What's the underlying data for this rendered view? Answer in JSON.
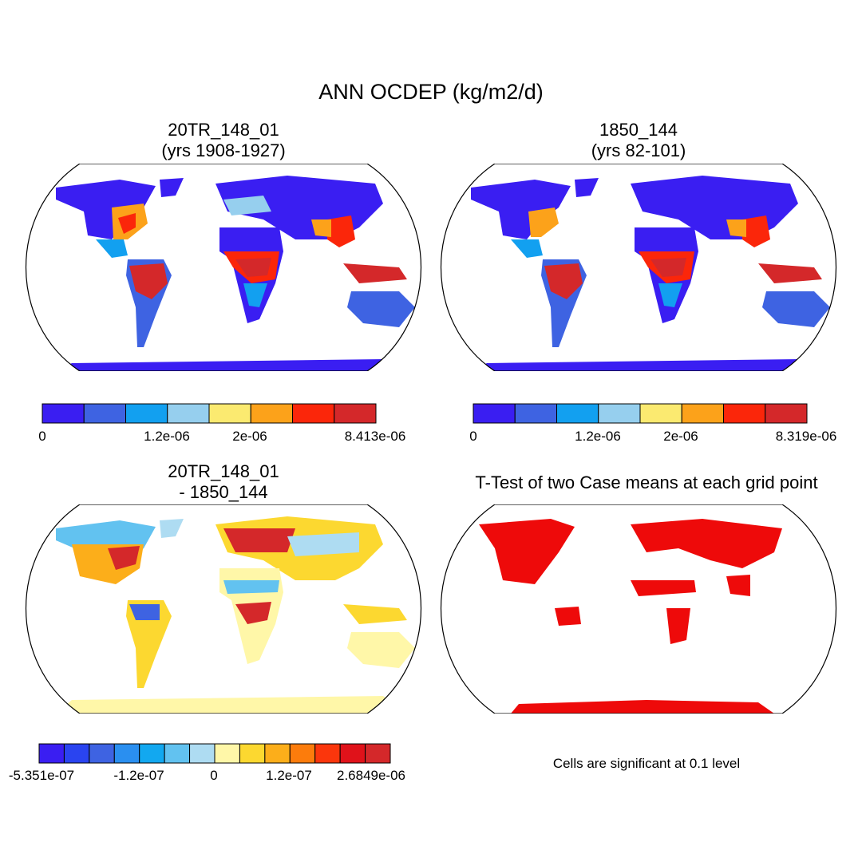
{
  "figure": {
    "title": "ANN OCDEP (kg/m2/d)"
  },
  "panels": [
    {
      "id": "case1",
      "title_line1": "20TR_148_01",
      "title_line2": "(yrs 1908-1927)",
      "colorbar": {
        "colors": [
          "#3a1ef2",
          "#3e63e2",
          "#12a0f0",
          "#96cfee",
          "#fbea70",
          "#fca21a",
          "#fb260a",
          "#d4282a"
        ],
        "tick_labels": [
          "0",
          "1.2e-06",
          "2e-06",
          "8.413e-06"
        ]
      }
    },
    {
      "id": "case2",
      "title_line1": "1850_144",
      "title_line2": "(yrs 82-101)",
      "colorbar": {
        "colors": [
          "#3a1ef2",
          "#3e63e2",
          "#12a0f0",
          "#96cfee",
          "#fbea70",
          "#fca21a",
          "#fb260a",
          "#d4282a"
        ],
        "tick_labels": [
          "0",
          "1.2e-06",
          "2e-06",
          "8.319e-06"
        ]
      }
    },
    {
      "id": "difference",
      "title_line1": "20TR_148_01",
      "title_line2": "- 1850_144",
      "colorbar": {
        "colors": [
          "#3a1ef2",
          "#2a44f0",
          "#3e63e2",
          "#2a8ff0",
          "#12a8f0",
          "#62c2f0",
          "#aedcf2",
          "#fff7a8",
          "#fcd830",
          "#fcae1a",
          "#fc7c0c",
          "#fb360c",
          "#e0121a",
          "#d4282a"
        ],
        "tick_labels": [
          "-5.351e-07",
          "-1.2e-07",
          "0",
          "1.2e-07",
          "2.6849e-06"
        ]
      }
    },
    {
      "id": "ttest",
      "title_line1": "T-Test of two Case means at each grid point",
      "note": "Cells are significant at 0.1 level",
      "colors": {
        "significant": "#ee0a0a"
      }
    }
  ]
}
